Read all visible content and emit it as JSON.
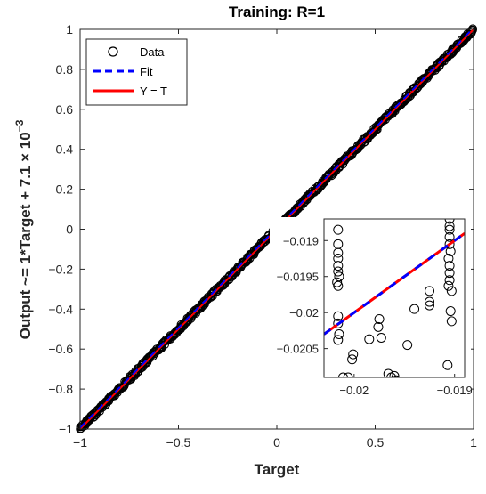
{
  "chart_data": {
    "type": "scatter",
    "title": "Training: R=1",
    "xlabel": "Target",
    "ylabel_parts": [
      "Output ~= 1*Target + 7.1 × 10",
      "−3"
    ],
    "xlim": [
      -1,
      1
    ],
    "ylim": [
      -1,
      1
    ],
    "x_ticks": [
      -1,
      -0.5,
      0,
      0.5,
      1
    ],
    "x_tick_labels": [
      "−1",
      "−0.5",
      "0",
      "0.5",
      "1"
    ],
    "y_ticks": [
      -1,
      -0.8,
      -0.6,
      -0.4,
      -0.2,
      0,
      0.2,
      0.4,
      0.6,
      0.8,
      1
    ],
    "y_tick_labels": [
      "−1",
      "−0.8",
      "−0.6",
      "−0.4",
      "−0.2",
      "0",
      "0.2",
      "0.4",
      "0.6",
      "0.8",
      "1"
    ],
    "legend": {
      "placement": "top-left",
      "entries": [
        {
          "label": "Data",
          "style": "open-circle",
          "color": "#000000"
        },
        {
          "label": "Fit",
          "style": "dashed-line",
          "color": "#0000ff"
        },
        {
          "label": "Y = T",
          "style": "solid-line",
          "color": "#ff0000"
        }
      ]
    },
    "series": [
      {
        "name": "Data",
        "kind": "points",
        "marker": "open-circle",
        "color": "#000000",
        "description_x_range": [
          -1,
          1
        ],
        "relation": "Output ≈ Target"
      },
      {
        "name": "Fit",
        "kind": "line",
        "slope": 1,
        "intercept": 0.0071,
        "color": "#0000ff",
        "dash": true
      },
      {
        "name": "Y = T",
        "kind": "line",
        "slope": 1,
        "intercept": 0,
        "color": "#ff0000"
      }
    ],
    "inset": {
      "type": "scatter",
      "xlim": [
        -0.0203,
        -0.0189
      ],
      "ylim": [
        -0.0209,
        -0.0187
      ],
      "x_ticks": [
        -0.02,
        -0.019
      ],
      "x_tick_labels": [
        "−0.02",
        "−0.019"
      ],
      "y_ticks": [
        -0.019,
        -0.0195,
        -0.02,
        -0.0205
      ],
      "y_tick_labels": [
        "−0.019",
        "−0.0195",
        "−0.02",
        "−0.0205"
      ],
      "points": [
        {
          "x": -0.02016,
          "y": -0.01885
        },
        {
          "x": -0.02016,
          "y": -0.01905
        },
        {
          "x": -0.02016,
          "y": -0.01917
        },
        {
          "x": -0.02016,
          "y": -0.01925
        },
        {
          "x": -0.02016,
          "y": -0.01935
        },
        {
          "x": -0.02016,
          "y": -0.01943
        },
        {
          "x": -0.02015,
          "y": -0.0195
        },
        {
          "x": -0.02017,
          "y": -0.01958
        },
        {
          "x": -0.02016,
          "y": -0.01963
        },
        {
          "x": -0.02016,
          "y": -0.02005
        },
        {
          "x": -0.02016,
          "y": -0.02015
        },
        {
          "x": -0.02015,
          "y": -0.0203
        },
        {
          "x": -0.02016,
          "y": -0.02038
        },
        {
          "x": -0.02011,
          "y": -0.0209
        },
        {
          "x": -0.02006,
          "y": -0.0209
        },
        {
          "x": -0.02002,
          "y": -0.02065
        },
        {
          "x": -0.02001,
          "y": -0.02058
        },
        {
          "x": -0.01985,
          "y": -0.02037
        },
        {
          "x": -0.01975,
          "y": -0.02009
        },
        {
          "x": -0.01976,
          "y": -0.0202
        },
        {
          "x": -0.01973,
          "y": -0.02035
        },
        {
          "x": -0.01966,
          "y": -0.02085
        },
        {
          "x": -0.01963,
          "y": -0.0209
        },
        {
          "x": -0.0196,
          "y": -0.02088
        },
        {
          "x": -0.01958,
          "y": -0.02094
        },
        {
          "x": -0.01955,
          "y": -0.021
        },
        {
          "x": -0.01947,
          "y": -0.02045
        },
        {
          "x": -0.0194,
          "y": -0.01995
        },
        {
          "x": -0.0193,
          "y": -0.0211
        },
        {
          "x": -0.01925,
          "y": -0.0197
        },
        {
          "x": -0.01925,
          "y": -0.01985
        },
        {
          "x": -0.01925,
          "y": -0.0199
        },
        {
          "x": -0.01905,
          "y": -0.0187
        },
        {
          "x": -0.01905,
          "y": -0.0188
        },
        {
          "x": -0.01905,
          "y": -0.01885
        },
        {
          "x": -0.01905,
          "y": -0.01895
        },
        {
          "x": -0.01905,
          "y": -0.01905
        },
        {
          "x": -0.01904,
          "y": -0.01915
        },
        {
          "x": -0.01906,
          "y": -0.01925
        },
        {
          "x": -0.01905,
          "y": -0.01935
        },
        {
          "x": -0.01905,
          "y": -0.01945
        },
        {
          "x": -0.01905,
          "y": -0.01955
        },
        {
          "x": -0.01906,
          "y": -0.01963
        },
        {
          "x": -0.01903,
          "y": -0.0197
        },
        {
          "x": -0.01904,
          "y": -0.01998
        },
        {
          "x": -0.01903,
          "y": -0.02012
        },
        {
          "x": -0.01907,
          "y": -0.02073
        }
      ]
    }
  }
}
